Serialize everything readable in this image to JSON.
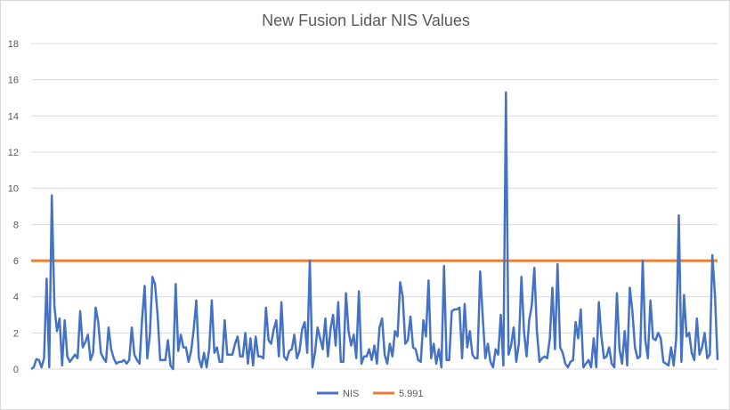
{
  "chart_data": {
    "type": "line",
    "title": "New Fusion Lidar NIS Values",
    "xlabel": "",
    "ylabel": "",
    "ylim": [
      0,
      18
    ],
    "yticks": [
      "0",
      "2",
      "4",
      "6",
      "8",
      "10",
      "12",
      "14",
      "16",
      "18"
    ],
    "grid": "horizontal",
    "legend_position": "bottom",
    "series": [
      {
        "name": "NIS",
        "color": "#4472C4",
        "values": [
          0,
          0.1,
          0.55,
          0.5,
          0.1,
          0.6,
          5,
          0.1,
          9.6,
          3.5,
          2.1,
          2.8,
          0.2,
          2.7,
          0.7,
          0.4,
          0.6,
          0.8,
          0.6,
          3.2,
          1.2,
          1.5,
          1.9,
          0.5,
          0.9,
          3.4,
          2.6,
          0.9,
          0.6,
          0.4,
          2.3,
          1.1,
          0.6,
          0.3,
          0.4,
          0.4,
          0.5,
          0.3,
          0.5,
          2.3,
          0.8,
          0.5,
          0.3,
          2.8,
          4.6,
          0.6,
          1.9,
          5.1,
          4.7,
          3,
          0.5,
          0.5,
          0.5,
          1.6,
          0.2,
          0,
          4.7,
          1,
          1.9,
          1.2,
          1.2,
          0.4,
          1,
          2.2,
          3.8,
          0.6,
          0.1,
          0.9,
          0.1,
          1.1,
          3.8,
          0.9,
          1.2,
          0.4,
          0.4,
          2.7,
          0.8,
          0.8,
          0.8,
          1.4,
          1.8,
          0.7,
          0.7,
          2,
          0.3,
          1.7,
          0.2,
          1.8,
          0.7,
          0.7,
          0.6,
          3.4,
          1.6,
          1.4,
          2.2,
          2.7,
          0.7,
          3.7,
          0.7,
          0.5,
          1,
          1.1,
          1.9,
          0.6,
          1,
          2.2,
          2.6,
          0.9,
          6,
          0.1,
          0.9,
          2.3,
          1.7,
          1.1,
          2.8,
          0.7,
          2.2,
          3,
          1.3,
          3.7,
          0.4,
          0.4,
          4.2,
          2.1,
          1.3,
          1.9,
          0.6,
          4.3,
          0.3,
          0.7,
          0.7,
          1.1,
          0.5,
          1.3,
          0.3,
          2.3,
          2.8,
          0.8,
          0.3,
          1.4,
          0.7,
          2.1,
          1.8,
          4.8,
          4,
          1.4,
          1.6,
          2.9,
          1.2,
          1.1,
          0.5,
          0.4,
          2.7,
          1.8,
          4.9,
          0.6,
          1.4,
          0.3,
          1.1,
          0.1,
          5.7,
          0.5,
          0.5,
          3.2,
          3.3,
          3.3,
          3.4,
          0.6,
          3.6,
          1.2,
          2.1,
          0.8,
          0.6,
          0.6,
          5.4,
          2.9,
          0.6,
          1.4,
          0.4,
          0.1,
          1.1,
          0.8,
          3,
          0.2,
          15.3,
          0.8,
          1.3,
          2.3,
          0.4,
          1.4,
          5.1,
          2.1,
          0.7,
          2.7,
          3.5,
          5.6,
          2.1,
          0.4,
          0.6,
          0.7,
          0.6,
          1.7,
          4.5,
          1.1,
          5.8,
          1.2,
          0.9,
          0.3,
          0.1,
          0.4,
          0.5,
          2.6,
          1.7,
          3.3,
          0.1,
          0.3,
          0.5,
          0.1,
          1.7,
          0.1,
          3.7,
          1.8,
          0.6,
          0.7,
          1.2,
          0.3,
          0.1,
          4.2,
          1.1,
          0.3,
          2.1,
          0.2,
          4.5,
          3.2,
          1.2,
          0.6,
          0.7,
          6,
          1.6,
          0.6,
          3.8,
          1.7,
          1.6,
          2,
          1.7,
          0.4,
          0.3,
          0.2,
          1.2,
          0.2,
          1.7,
          8.5,
          0.4,
          4.1,
          1.8,
          2,
          0.9,
          0.5,
          2.8,
          0.8,
          1.2,
          2,
          0.6,
          0.8,
          6.3,
          4.1,
          0.5
        ]
      },
      {
        "name": "5.991",
        "color": "#ED7D31",
        "constant": 5.991
      }
    ]
  }
}
